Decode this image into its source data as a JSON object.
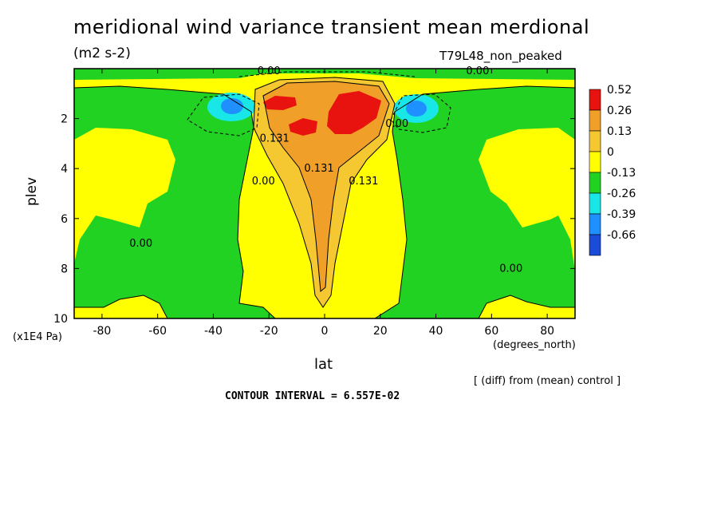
{
  "chart_data": {
    "type": "contour",
    "title": "meridional wind variance transient mean merdional",
    "units": "(m2 s-2)",
    "experiment": "T79L48_non_peaked",
    "xlabel": "lat",
    "xunits": "(degrees_north)",
    "ylabel": "plev",
    "yunits": "(x1E4 Pa)",
    "xlim": [
      -90,
      90
    ],
    "ylim": [
      10,
      0
    ],
    "xticks": [
      "-80",
      "-60",
      "-40",
      "-20",
      "0",
      "20",
      "40",
      "60",
      "80"
    ],
    "xtick_values": [
      -80,
      -60,
      -40,
      -20,
      0,
      20,
      40,
      60,
      80
    ],
    "yticks": [
      "2",
      "4",
      "6",
      "8",
      "10"
    ],
    "ytick_values": [
      2,
      4,
      6,
      8,
      10
    ],
    "legend_levels": [
      "0.52",
      "0.26",
      "0.13",
      "0",
      "-0.13",
      "-0.26",
      "-0.39",
      "-0.66"
    ],
    "legend_colors": [
      "#e8130f",
      "#f0a028",
      "#f5c832",
      "#ffff00",
      "#22d222",
      "#19e6e6",
      "#1e90ff",
      "#1a4bd9"
    ],
    "contour_labels": [
      {
        "text": "0.00",
        "lat": -20,
        "plev": 0.1
      },
      {
        "text": "0.00",
        "lat": 55,
        "plev": 0.1
      },
      {
        "text": "0.131",
        "lat": -18,
        "plev": 2.8
      },
      {
        "text": "0.131",
        "lat": -2,
        "plev": 4.0
      },
      {
        "text": "0.131",
        "lat": 14,
        "plev": 4.5
      },
      {
        "text": "0.00",
        "lat": -22,
        "plev": 4.5
      },
      {
        "text": "0.00",
        "lat": 26,
        "plev": 2.2
      },
      {
        "text": "0.00",
        "lat": -66,
        "plev": 7.0
      },
      {
        "text": "0.00",
        "lat": 67,
        "plev": 8.0
      }
    ],
    "diff_note": "[ (diff) from (mean) control ]",
    "contour_interval": "CONTOUR INTERVAL = 6.557E-02"
  }
}
